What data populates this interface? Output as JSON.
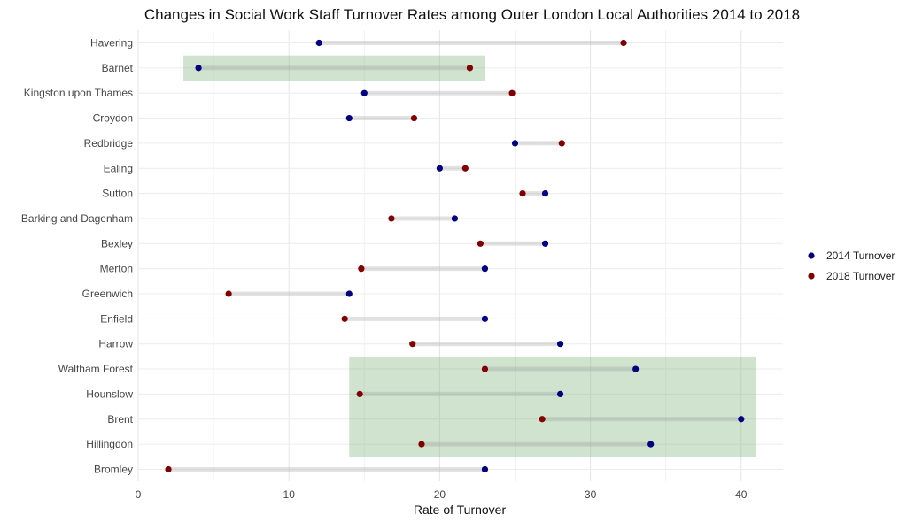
{
  "chart_data": {
    "type": "dumbbell",
    "title": "Changes in Social Work Staff Turnover Rates among Outer London Local Authorities 2014 to 2018",
    "xlabel": "Rate of Turnover",
    "ylabel": "",
    "xlim": [
      0,
      43
    ],
    "xticks": [
      0,
      10,
      20,
      30,
      40
    ],
    "grid": true,
    "legend_position": "right",
    "series": [
      {
        "name": "2014 Turnover",
        "color": "#000080"
      },
      {
        "name": "2018 Turnover",
        "color": "#800000"
      }
    ],
    "categories": [
      "Havering",
      "Barnet",
      "Kingston upon Thames",
      "Croydon",
      "Redbridge",
      "Ealing",
      "Sutton",
      "Barking and Dagenham",
      "Bexley",
      "Merton",
      "Greenwich",
      "Enfield",
      "Harrow",
      "Waltham Forest",
      "Hounslow",
      "Brent",
      "Hillingdon",
      "Bromley"
    ],
    "values_2014": [
      12,
      4,
      15,
      14,
      25,
      20,
      27,
      21,
      27,
      23,
      14,
      23,
      28,
      33,
      28,
      40,
      34,
      23
    ],
    "values_2018": [
      32.2,
      22,
      24.8,
      18.3,
      28.1,
      21.7,
      25.5,
      16.8,
      22.7,
      14.8,
      6,
      13.7,
      18.2,
      23,
      14.7,
      26.8,
      18.8,
      2
    ],
    "highlights": [
      {
        "categories": [
          "Barnet"
        ],
        "x_range": [
          3,
          23
        ]
      },
      {
        "categories": [
          "Waltham Forest",
          "Hounslow",
          "Brent",
          "Hillingdon"
        ],
        "x_range": [
          14,
          41
        ]
      }
    ]
  }
}
